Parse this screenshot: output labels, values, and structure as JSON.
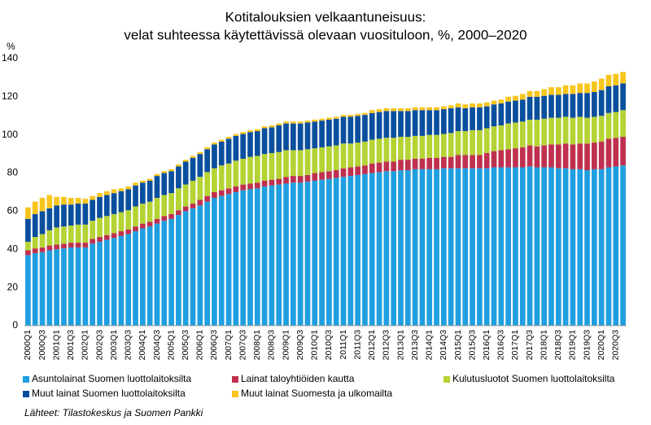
{
  "chart_data": {
    "type": "stacked_bar",
    "title": "Kotitalouksien velkaantuneisuus:",
    "subtitle": "velat suhteessa käytettävissä olevaan vuosituloon, %, 2000–2020",
    "y_label": "%",
    "source": "Lähteet: Tilastokeskus ja Suomen Pankki",
    "categories": [
      "2000Q1",
      null,
      "2000Q3",
      null,
      "2001Q1",
      null,
      "2001Q3",
      null,
      "2002Q1",
      null,
      "2002Q3",
      null,
      "2003Q1",
      null,
      "2003Q3",
      null,
      "2004Q1",
      null,
      "2004Q3",
      null,
      "2005Q1",
      null,
      "2005Q3",
      null,
      "2006Q1",
      null,
      "2006Q3",
      null,
      "2007Q1",
      null,
      "2007Q3",
      null,
      "2008Q1",
      null,
      "2008Q3",
      null,
      "2009Q1",
      null,
      "2009Q3",
      null,
      "2010Q1",
      null,
      "2010Q3",
      null,
      "2011Q1",
      null,
      "2011Q3",
      null,
      "2012Q1",
      null,
      "2012Q3",
      null,
      "2013Q1",
      null,
      "2013Q3",
      null,
      "2014Q1",
      null,
      "2014Q3",
      null,
      "2015Q1",
      null,
      "2015Q3",
      null,
      "2016Q1",
      null,
      "2016Q3",
      null,
      "2017Q1",
      null,
      "2017Q3",
      null,
      "2018Q1",
      null,
      "2018Q3",
      null,
      "2019Q1",
      null,
      "2019Q3",
      null,
      "2020Q1",
      null,
      "2020Q3",
      null
    ],
    "series": [
      {
        "name": "Asuntolainat Suomen luottolaitoksilta",
        "color": "#1f9fe0",
        "values": [
          37,
          38,
          38.5,
          39.5,
          40,
          40.5,
          41,
          41,
          41,
          43,
          44,
          45,
          46,
          47,
          48,
          49.5,
          51,
          52,
          53.5,
          55,
          56,
          58,
          60,
          61.5,
          63,
          65,
          67,
          68,
          69,
          70,
          71,
          71.5,
          72,
          73,
          73.5,
          74,
          74.5,
          75,
          75,
          75.5,
          76,
          76.5,
          77,
          77.5,
          78,
          78.5,
          79,
          79.5,
          80,
          80.5,
          81,
          81,
          81.5,
          81.5,
          82,
          82,
          82,
          82,
          82.5,
          82.5,
          82.5,
          82.5,
          82.5,
          82.5,
          82.5,
          83,
          83,
          83,
          83,
          83,
          83.5,
          83,
          83,
          83,
          82.5,
          82.5,
          82,
          82,
          81.5,
          82,
          82,
          83,
          83.5,
          84
        ]
      },
      {
        "name": "Lainat taloyhtiöiden kautta",
        "color": "#c0304e",
        "values": [
          2.5,
          2.5,
          2.5,
          2.5,
          2.5,
          2.5,
          2.5,
          2.5,
          2.5,
          2.5,
          2.5,
          2.5,
          2.5,
          2.5,
          2.5,
          2.5,
          2.5,
          2.5,
          2.5,
          2.5,
          2.5,
          2.5,
          2.5,
          2.5,
          3,
          3,
          3,
          3,
          3,
          3,
          3,
          3,
          3,
          3,
          3,
          3,
          3.5,
          3.5,
          3.5,
          3.5,
          4,
          4,
          4,
          4,
          4.5,
          4.5,
          4.5,
          4.5,
          5,
          5,
          5,
          5,
          5.5,
          5.5,
          5.5,
          5.5,
          6,
          6,
          6,
          6,
          7,
          7,
          7,
          7,
          8,
          8.5,
          9,
          9.5,
          10,
          10.5,
          11,
          11,
          11.5,
          12,
          12.5,
          13,
          13,
          13.5,
          14,
          14,
          14.5,
          15,
          15,
          15
        ]
      },
      {
        "name": "Kulutusluotot Suomen luottolaitoksilta",
        "color": "#b5d334",
        "values": [
          4.5,
          6,
          7,
          8,
          9,
          9,
          9,
          9.5,
          9.5,
          9.5,
          10,
          10,
          10,
          10,
          10,
          10.5,
          10.5,
          10.5,
          11,
          11,
          11,
          11.5,
          11.5,
          12,
          12,
          12.5,
          12.5,
          13,
          13,
          13.5,
          13.5,
          14,
          14,
          14,
          14,
          14,
          14,
          13.5,
          13.5,
          13.5,
          13,
          13,
          13,
          13,
          13,
          12.5,
          12.5,
          12.5,
          12.5,
          12.5,
          12.5,
          12.5,
          12,
          12,
          12,
          12,
          12,
          12,
          12,
          12.5,
          12.5,
          12.5,
          13,
          13,
          13,
          13,
          13,
          13.5,
          13.5,
          13.5,
          13.5,
          14,
          14,
          14,
          14,
          14,
          14,
          14,
          13.5,
          13.5,
          13.5,
          13.5,
          13.5,
          14
        ]
      },
      {
        "name": "Muut lainat Suomen luottolaitoksilta",
        "color": "#0a4f9e",
        "values": [
          12,
          12,
          12,
          11.5,
          11.5,
          11.5,
          11,
          11,
          11,
          11,
          11,
          11,
          11,
          11,
          11,
          11,
          11,
          11,
          11.5,
          11.5,
          11.5,
          11.5,
          12,
          12,
          12,
          12,
          12.5,
          12.5,
          13,
          13,
          13,
          13,
          13,
          13.5,
          13.5,
          14,
          14,
          14,
          14,
          14,
          14,
          14,
          14,
          14,
          14,
          14,
          14,
          14,
          14,
          14,
          14,
          14,
          13.5,
          13.5,
          13.5,
          13.5,
          13,
          13,
          13,
          13,
          12.5,
          12,
          12,
          12,
          11.5,
          11.5,
          11.5,
          11.5,
          11.5,
          11.5,
          12,
          12,
          12,
          12,
          12,
          12,
          12.5,
          12.5,
          13,
          13,
          13.5,
          14,
          14,
          14
        ]
      },
      {
        "name": "Muut lainat Suomesta ja ulkomailta",
        "color": "#f8c51c",
        "values": [
          6,
          6.5,
          7,
          7,
          4.5,
          4,
          3.5,
          3,
          2.5,
          2,
          2,
          2,
          2,
          1.5,
          1.5,
          1.5,
          1,
          1,
          1,
          1,
          1,
          1,
          1,
          1,
          1,
          1,
          1,
          1,
          1,
          1,
          1,
          1,
          1,
          1,
          1,
          1,
          1,
          1,
          1,
          1,
          1,
          1,
          1,
          1,
          1,
          1,
          1,
          1,
          1.5,
          1.5,
          1.5,
          1.5,
          1.5,
          1.5,
          1.5,
          1.5,
          1.5,
          1.5,
          1.5,
          1.5,
          2,
          2,
          2,
          2,
          2,
          2,
          2,
          2.5,
          2.5,
          3,
          3,
          3,
          3.5,
          4,
          4,
          4.5,
          4.5,
          5,
          5,
          5.5,
          6,
          6,
          6,
          6
        ]
      }
    ],
    "ylim": [
      0,
      140
    ],
    "yticks": [
      0,
      20,
      40,
      60,
      80,
      100,
      120,
      140
    ],
    "grid": false
  }
}
